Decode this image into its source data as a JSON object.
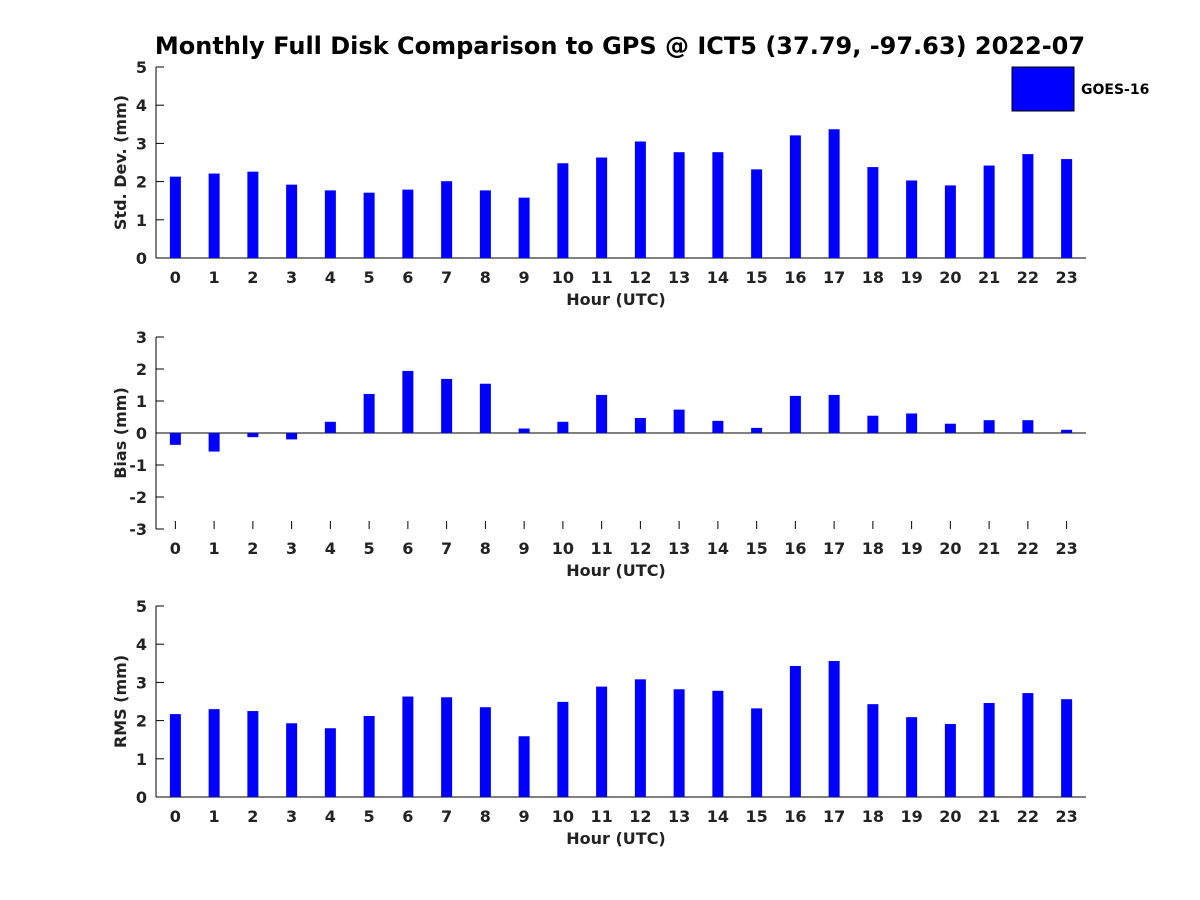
{
  "title": "Monthly Full Disk Comparison to GPS @ ICT5 (37.79, -97.63) 2022-07",
  "legend": {
    "label": "GOES-16",
    "color": "#0000ff"
  },
  "chart_data": [
    {
      "type": "bar",
      "title": "",
      "xlabel": "Hour (UTC)",
      "ylabel": "Std. Dev. (mm)",
      "categories": [
        "0",
        "1",
        "2",
        "3",
        "4",
        "5",
        "6",
        "7",
        "8",
        "9",
        "10",
        "11",
        "12",
        "13",
        "14",
        "15",
        "16",
        "17",
        "18",
        "19",
        "20",
        "21",
        "22",
        "23"
      ],
      "ylim": [
        0,
        5
      ],
      "yticks": [
        "0",
        "1",
        "2",
        "3",
        "4",
        "5"
      ],
      "series": [
        {
          "name": "GOES-16",
          "color": "#0000ff",
          "values": [
            2.13,
            2.21,
            2.26,
            1.92,
            1.77,
            1.71,
            1.79,
            2.01,
            1.77,
            1.58,
            2.48,
            2.63,
            3.05,
            2.77,
            2.77,
            2.32,
            3.21,
            3.37,
            2.38,
            2.03,
            1.9,
            2.42,
            2.72,
            2.59
          ]
        }
      ],
      "legend": "top-right",
      "grid": false
    },
    {
      "type": "bar",
      "title": "",
      "xlabel": "Hour (UTC)",
      "ylabel": "Bias (mm)",
      "categories": [
        "0",
        "1",
        "2",
        "3",
        "4",
        "5",
        "6",
        "7",
        "8",
        "9",
        "10",
        "11",
        "12",
        "13",
        "14",
        "15",
        "16",
        "17",
        "18",
        "19",
        "20",
        "21",
        "22",
        "23"
      ],
      "ylim": [
        -3,
        3
      ],
      "yticks": [
        "-3",
        "-2",
        "-1",
        "0",
        "1",
        "2",
        "3"
      ],
      "series": [
        {
          "name": "GOES-16",
          "color": "#0000ff",
          "values": [
            -0.37,
            -0.58,
            -0.13,
            -0.2,
            0.35,
            1.22,
            1.94,
            1.69,
            1.54,
            0.14,
            0.35,
            1.19,
            0.47,
            0.73,
            0.38,
            0.16,
            1.16,
            1.19,
            0.54,
            0.61,
            0.29,
            0.4,
            0.4,
            0.1
          ]
        }
      ],
      "grid": false
    },
    {
      "type": "bar",
      "title": "",
      "xlabel": "Hour (UTC)",
      "ylabel": "RMS (mm)",
      "categories": [
        "0",
        "1",
        "2",
        "3",
        "4",
        "5",
        "6",
        "7",
        "8",
        "9",
        "10",
        "11",
        "12",
        "13",
        "14",
        "15",
        "16",
        "17",
        "18",
        "19",
        "20",
        "21",
        "22",
        "23"
      ],
      "ylim": [
        0,
        5
      ],
      "yticks": [
        "0",
        "1",
        "2",
        "3",
        "4",
        "5"
      ],
      "series": [
        {
          "name": "GOES-16",
          "color": "#0000ff",
          "values": [
            2.17,
            2.3,
            2.25,
            1.93,
            1.8,
            2.12,
            2.63,
            2.61,
            2.35,
            1.59,
            2.49,
            2.89,
            3.08,
            2.82,
            2.78,
            2.32,
            3.43,
            3.56,
            2.43,
            2.09,
            1.91,
            2.46,
            2.72,
            2.56
          ]
        }
      ],
      "grid": false
    }
  ]
}
